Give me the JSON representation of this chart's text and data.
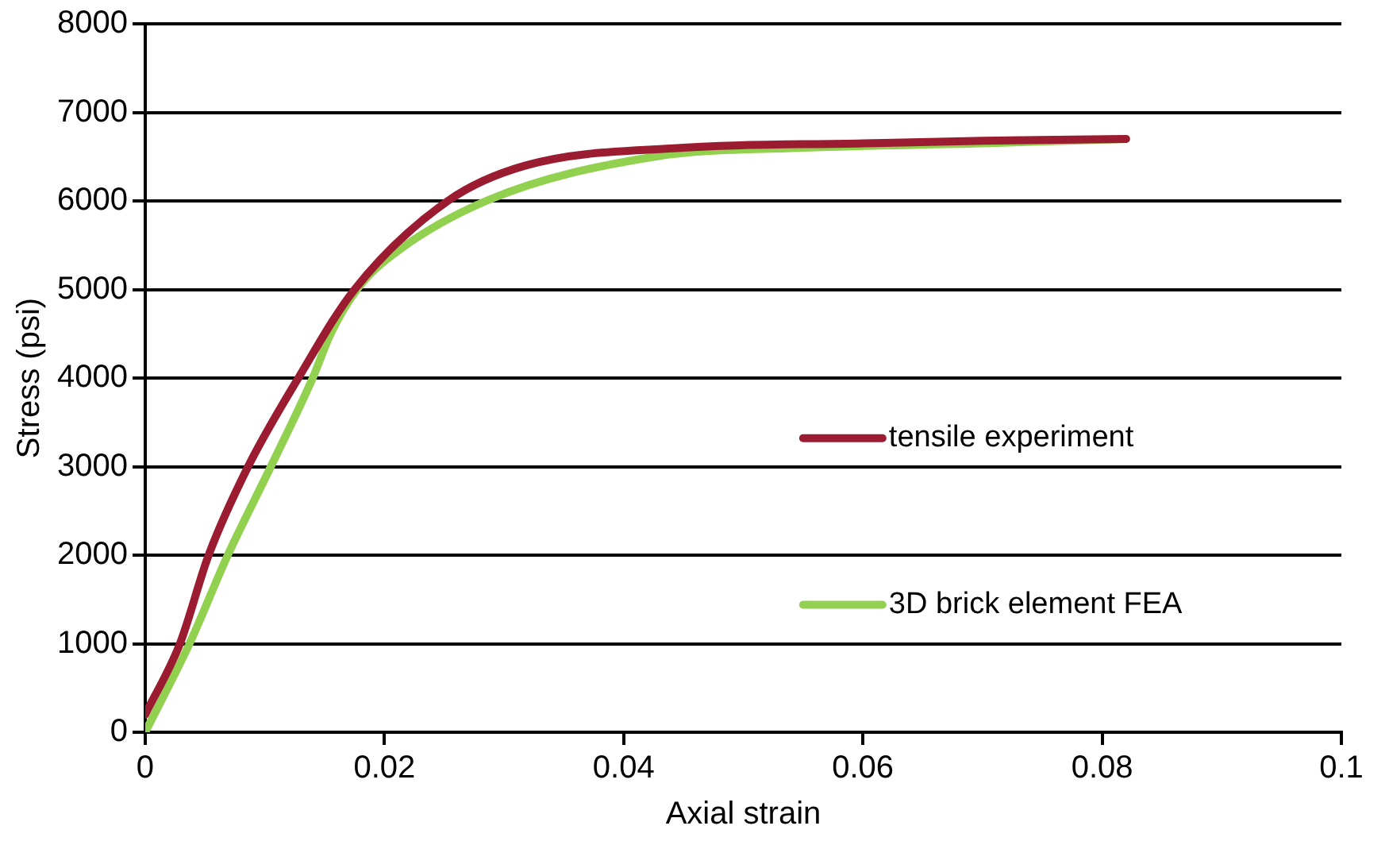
{
  "chart_data": {
    "type": "line",
    "xlabel": "Axial strain",
    "ylabel": "Stress (psi)",
    "xlim": [
      0,
      0.1
    ],
    "xticks": [
      0,
      0.02,
      0.04,
      0.06,
      0.08,
      0.1
    ],
    "ylim": [
      0,
      8000
    ],
    "yticks": [
      0,
      1000,
      2000,
      3000,
      4000,
      5000,
      6000,
      7000,
      8000
    ],
    "grid": "y",
    "legend": "right",
    "marker": "none",
    "line_style": "solid",
    "series": [
      {
        "name": "tensile experiment",
        "color": "#9b1b30",
        "x": [
          0,
          0.0029,
          0.0053,
          0.0086,
          0.0128,
          0.0175,
          0.0253,
          0.0318,
          0.045,
          0.06,
          0.07,
          0.082
        ],
        "values": [
          200,
          1000,
          2000,
          3000,
          4000,
          5000,
          6000,
          6400,
          6600,
          6650,
          6680,
          6700
        ]
      },
      {
        "name": "3D brick element FEA",
        "color": "#92d050",
        "x": [
          0,
          0.0037,
          0.0069,
          0.0105,
          0.014,
          0.0155,
          0.0177,
          0.0201,
          0.0285,
          0.0426,
          0.055,
          0.07,
          0.082
        ],
        "values": [
          0,
          1000,
          2000,
          3000,
          4000,
          4500,
          5000,
          5330,
          6000,
          6500,
          6600,
          6650,
          6700
        ]
      }
    ]
  }
}
